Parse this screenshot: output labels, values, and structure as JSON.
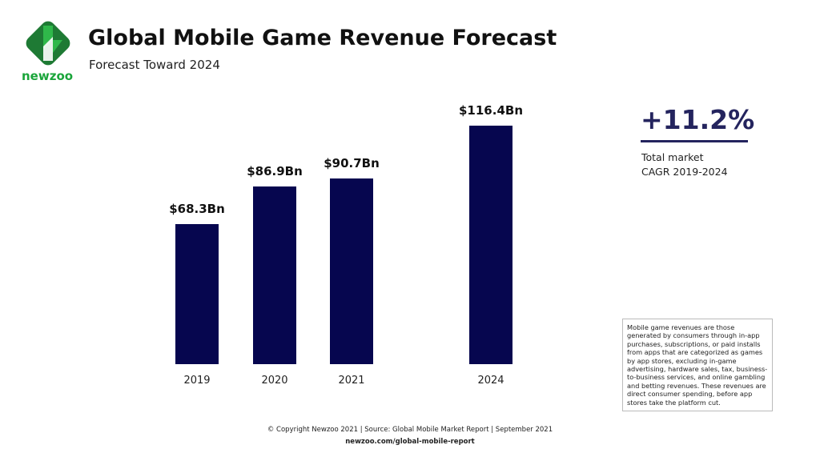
{
  "header": {
    "title": "Global Mobile Game Revenue Forecast",
    "subtitle": "Forecast Toward 2024",
    "brand": "newzoo"
  },
  "chart_data": {
    "type": "bar",
    "categories": [
      "2019",
      "2020",
      "2021",
      "2024"
    ],
    "values": [
      68.3,
      86.9,
      90.7,
      116.4
    ],
    "data_labels": [
      "$68.3Bn",
      "$86.9Bn",
      "$90.7Bn",
      "$116.4Bn"
    ],
    "bar_color": "#06064f",
    "unit": "Bn USD",
    "grid": false
  },
  "cagr": {
    "value": "+11.2%",
    "line1": "Total market",
    "line2": "CAGR 2019-2024",
    "color": "#24245e"
  },
  "note": "Mobile game revenues are those generated by consumers through in-app purchases, subscriptions, or paid installs from apps that are categorized as games by app stores, excluding in-game advertising, hardware sales, tax, business-to-business services, and online gambling and betting revenues. These revenues are direct consumer spending, before app stores take the platform cut.",
  "footer": {
    "copyright": "© Copyright Newzoo 2021 | Source: Global Mobile Market Report | September 2021",
    "url": "newzoo.com/global-mobile-report"
  },
  "brand_color": "#1aa53a"
}
